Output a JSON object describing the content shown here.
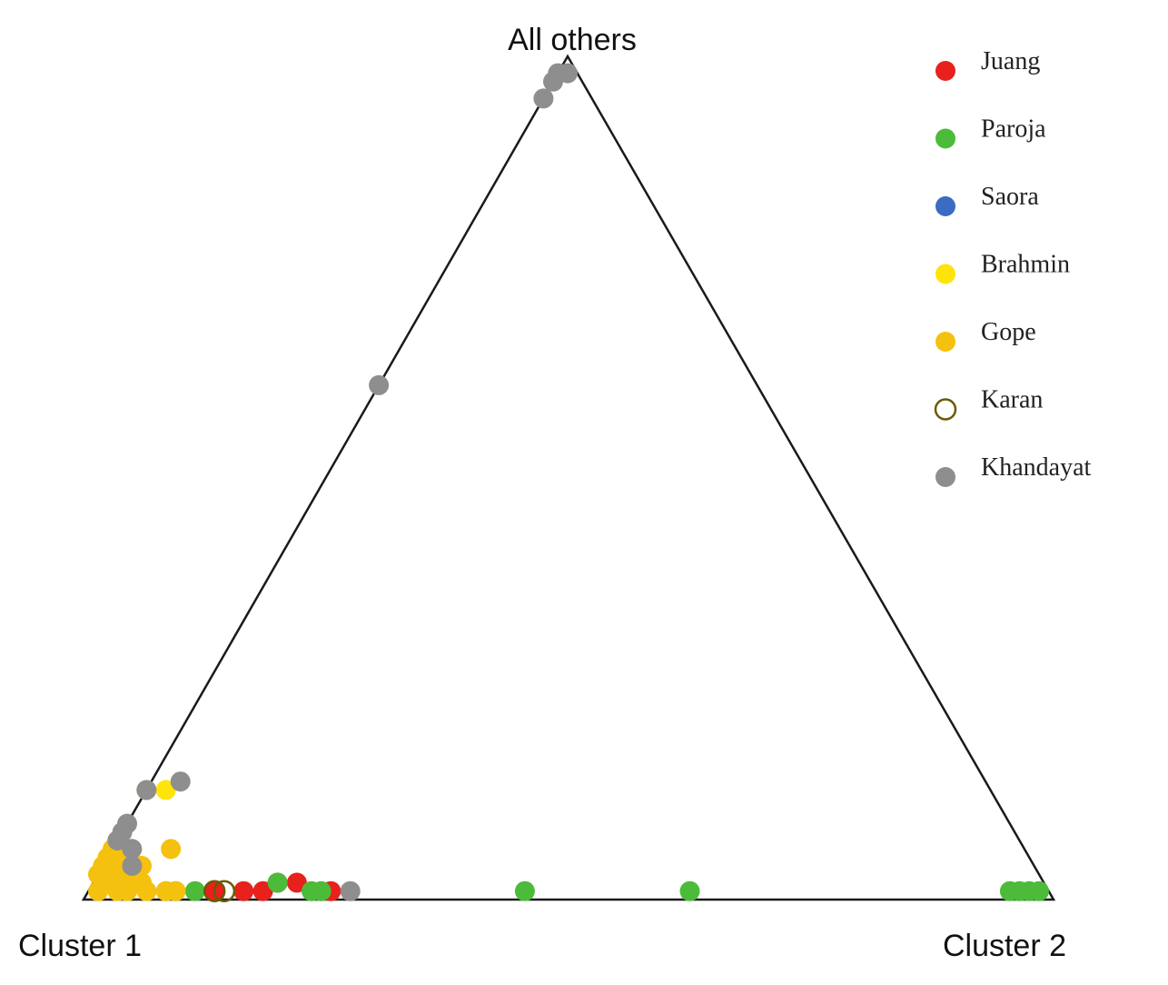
{
  "chart_data": {
    "type": "scatter",
    "subtype": "ternary",
    "title": "",
    "vertices": {
      "top": "All others",
      "bottom_left": "Cluster 1",
      "bottom_right": "Cluster 2"
    },
    "legend_position": "top-right",
    "grid": false,
    "coordinate_note": "each point given as proportions [cluster1, cluster2, all_others]",
    "series": [
      {
        "name": "Juang",
        "color": "#e8211d",
        "marker": "filled",
        "points": [
          [
            0.83,
            0.16,
            0.01
          ],
          [
            0.81,
            0.18,
            0.01
          ],
          [
            0.79,
            0.19,
            0.02
          ],
          [
            0.77,
            0.21,
            0.02
          ],
          [
            0.74,
            0.25,
            0.01
          ],
          [
            0.86,
            0.13,
            0.01
          ]
        ]
      },
      {
        "name": "Paroja",
        "color": "#4cbb3a",
        "marker": "filled",
        "points": [
          [
            0.91,
            0.08,
            0.01
          ],
          [
            0.9,
            0.09,
            0.01
          ],
          [
            0.88,
            0.11,
            0.01
          ],
          [
            0.79,
            0.19,
            0.02
          ],
          [
            0.76,
            0.23,
            0.01
          ],
          [
            0.75,
            0.24,
            0.01
          ],
          [
            0.54,
            0.45,
            0.01
          ],
          [
            0.37,
            0.62,
            0.01
          ],
          [
            0.04,
            0.95,
            0.01
          ],
          [
            0.03,
            0.96,
            0.01
          ],
          [
            0.02,
            0.97,
            0.01
          ],
          [
            0.01,
            0.98,
            0.01
          ]
        ]
      },
      {
        "name": "Saora",
        "color": "#3c6bc4",
        "marker": "filled",
        "points": [
          [
            0.96,
            0.02,
            0.02
          ]
        ]
      },
      {
        "name": "Brahmin",
        "color": "#ffe40a",
        "marker": "filled",
        "points": [
          [
            0.87,
            0.0,
            0.13
          ],
          [
            0.85,
            0.02,
            0.13
          ],
          [
            0.96,
            0.02,
            0.02
          ]
        ]
      },
      {
        "name": "Gope",
        "color": "#f5c10f",
        "marker": "filled",
        "points": [
          [
            0.88,
            0.06,
            0.06
          ],
          [
            0.97,
            0.01,
            0.02
          ],
          [
            0.96,
            0.02,
            0.02
          ],
          [
            0.95,
            0.03,
            0.02
          ],
          [
            0.94,
            0.04,
            0.02
          ],
          [
            0.93,
            0.05,
            0.02
          ],
          [
            0.94,
            0.02,
            0.04
          ],
          [
            0.95,
            0.01,
            0.04
          ],
          [
            0.93,
            0.01,
            0.06
          ],
          [
            0.92,
            0.02,
            0.06
          ],
          [
            0.92,
            0.04,
            0.04
          ],
          [
            0.96,
            0.0,
            0.04
          ],
          [
            0.95,
            0.0,
            0.05
          ],
          [
            0.94,
            0.0,
            0.06
          ],
          [
            0.93,
            0.0,
            0.07
          ],
          [
            0.97,
            0.0,
            0.03
          ],
          [
            0.96,
            0.03,
            0.01
          ],
          [
            0.95,
            0.04,
            0.01
          ],
          [
            0.93,
            0.06,
            0.01
          ],
          [
            0.91,
            0.08,
            0.01
          ],
          [
            0.9,
            0.09,
            0.01
          ],
          [
            0.98,
            0.01,
            0.01
          ]
        ]
      },
      {
        "name": "Karan",
        "color": "#6b5a00",
        "marker": "hollow",
        "points": [
          [
            0.86,
            0.13,
            0.01
          ],
          [
            0.85,
            0.14,
            0.01
          ]
        ]
      },
      {
        "name": "Khandayat",
        "color": "#8e8e8e",
        "marker": "filled",
        "points": [
          [
            0.02,
            0.0,
            0.98
          ],
          [
            0.01,
            0.01,
            0.98
          ],
          [
            0.03,
            0.0,
            0.97
          ],
          [
            0.05,
            0.0,
            0.95
          ],
          [
            0.39,
            0.0,
            0.61
          ],
          [
            0.83,
            0.03,
            0.14
          ],
          [
            0.87,
            0.0,
            0.13
          ],
          [
            0.91,
            0.0,
            0.09
          ],
          [
            0.92,
            0.0,
            0.08
          ],
          [
            0.93,
            0.0,
            0.07
          ],
          [
            0.92,
            0.02,
            0.06
          ],
          [
            0.93,
            0.03,
            0.04
          ],
          [
            0.72,
            0.27,
            0.01
          ]
        ]
      }
    ]
  }
}
